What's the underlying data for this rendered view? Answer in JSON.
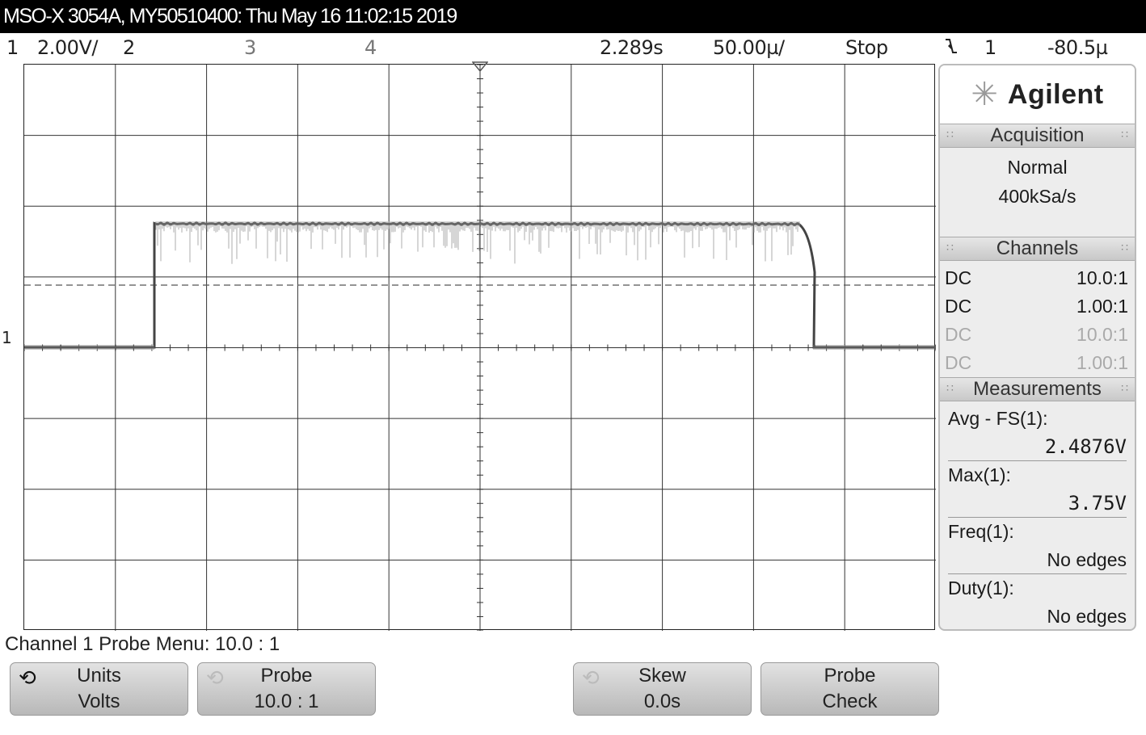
{
  "header": {
    "title": "MSO-X 3054A, MY50510400: Thu May 16 11:02:15 2019"
  },
  "status": {
    "ch1_num": "1",
    "ch1_scale": "2.00V/",
    "ch2_num": "2",
    "ch3_num": "3",
    "ch4_num": "4",
    "time_pos": "2.289s",
    "time_scale": "50.00µ/",
    "run_state": "Stop",
    "trigger_icon": "falling-edge-trigger-icon",
    "trigger_source": "1",
    "trigger_level": "-80.5µ"
  },
  "screen": {
    "ground_marker": "1",
    "trigger_marker": "trigger-position-icon",
    "trace_color": "#444444",
    "grid_color": "#333333"
  },
  "sidepanel": {
    "brand": "Agilent",
    "logo_icon": "agilent-spark-icon",
    "acquisition": {
      "heading": "Acquisition",
      "mode": "Normal",
      "rate": "400kSa/s"
    },
    "channels": {
      "heading": "Channels",
      "rows": [
        {
          "coupling": "DC",
          "probe": "10.0:1"
        },
        {
          "coupling": "DC",
          "probe": "1.00:1"
        },
        {
          "coupling": "DC",
          "probe": "10.0:1"
        },
        {
          "coupling": "DC",
          "probe": "1.00:1"
        }
      ]
    },
    "measurements": {
      "heading": "Measurements",
      "items": [
        {
          "label": "Avg - FS(1):",
          "value": "2.4876V"
        },
        {
          "label": "Max(1):",
          "value": "3.75V"
        },
        {
          "label": "Freq(1):",
          "value": "No edges"
        },
        {
          "label": "Duty(1):",
          "value": "No edges"
        }
      ]
    }
  },
  "menu": {
    "title": "Channel 1 Probe Menu: 10.0 : 1",
    "softkeys": [
      {
        "line1": "Units",
        "line2": "Volts",
        "icon": "rotate-knob-icon"
      },
      {
        "line1": "Probe",
        "line2": "10.0 : 1",
        "icon": "rotate-knob-icon"
      },
      {
        "line1": "Skew",
        "line2": "0.0s",
        "icon": "rotate-knob-icon"
      },
      {
        "line1": "Probe",
        "line2": "Check"
      }
    ]
  }
}
